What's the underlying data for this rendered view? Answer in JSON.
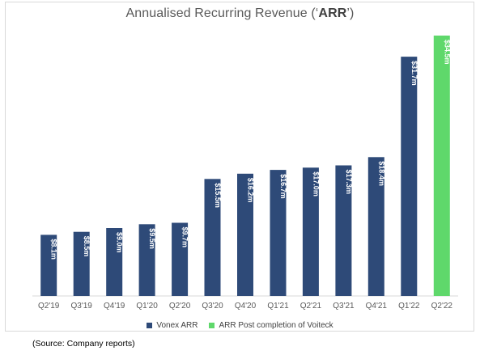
{
  "title": {
    "prefix": "Annualised Recurring Revenue (‘",
    "bold": "ARR",
    "suffix": "’)"
  },
  "source": "(Source: Company reports)",
  "colors": {
    "vonex": "#2e4a78",
    "voiteck": "#5fd86b",
    "label": "#ffffff",
    "axis": "#d9d9d9",
    "tick": "#595959"
  },
  "chart_data": {
    "type": "bar",
    "title": "Annualised Recurring Revenue (‘ARR’)",
    "xlabel": "",
    "ylabel": "",
    "ylim": [
      0,
      36
    ],
    "grid": false,
    "legend_position": "bottom",
    "categories": [
      "Q2'19",
      "Q3'19",
      "Q4'19",
      "Q1'20",
      "Q2'20",
      "Q3'20",
      "Q4'20",
      "Q1'21",
      "Q2'21",
      "Q3'21",
      "Q4'21",
      "Q1'22",
      "Q2'22"
    ],
    "series": [
      {
        "name": "Vonex ARR",
        "color": "#2e4a78",
        "values": [
          8.1,
          8.5,
          9.0,
          9.5,
          9.7,
          15.5,
          16.2,
          16.7,
          17.0,
          17.3,
          18.4,
          31.7,
          null
        ],
        "labels": [
          "$8.1m",
          "$8.5m",
          "$9.0m",
          "$9.5m",
          "$9.7m",
          "$15.5m",
          "$16.2m",
          "$16.7m",
          "$17.0m",
          "$17.3m",
          "$18.4m",
          "$31.7m",
          ""
        ]
      },
      {
        "name": "ARR Post completion of Voiteck",
        "color": "#5fd86b",
        "values": [
          null,
          null,
          null,
          null,
          null,
          null,
          null,
          null,
          null,
          null,
          null,
          null,
          34.5
        ],
        "labels": [
          "",
          "",
          "",
          "",
          "",
          "",
          "",
          "",
          "",
          "",
          "",
          "",
          "$34.5m"
        ]
      }
    ]
  }
}
